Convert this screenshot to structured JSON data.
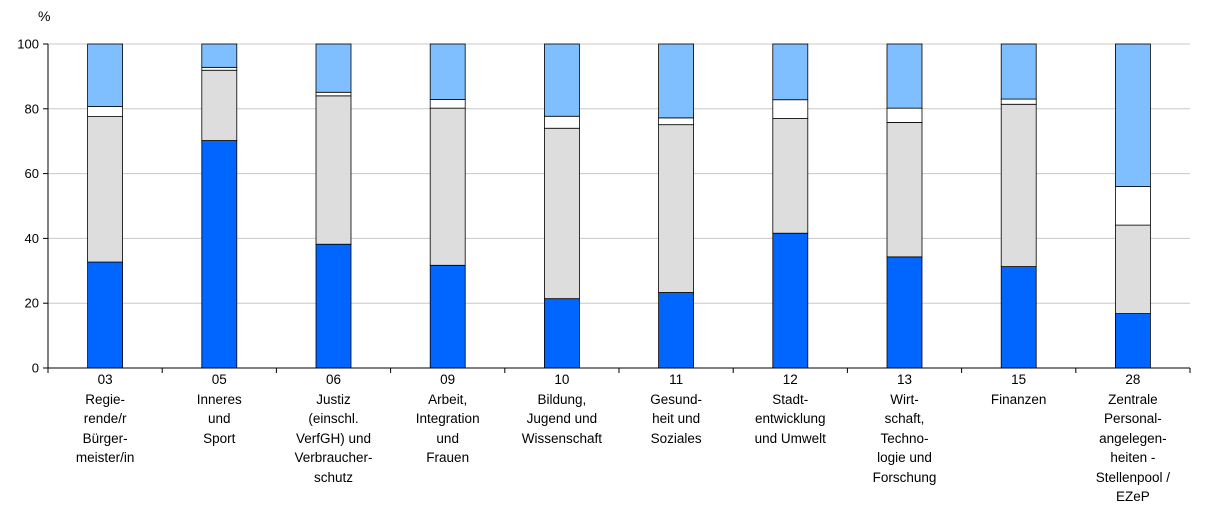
{
  "chart_data": {
    "type": "bar",
    "stacked": true,
    "y_unit": "%",
    "ylim": [
      0,
      100
    ],
    "yticks": [
      0,
      20,
      40,
      60,
      80,
      100
    ],
    "grid": true,
    "categories": [
      "03\nRegie-\nrende/r\nBürger-\nmeister/in",
      "05\nInneres\nund\nSport",
      "06\nJustiz\n(einschl.\nVerfGH) und\nVerbraucher-\nschutz",
      "09\nArbeit,\nIntegration\nund\nFrauen",
      "10\nBildung,\nJugend und\nWissenschaft",
      "11\nGesund-\nheit und\nSoziales",
      "12\nStadt-\nentwicklung\nund Umwelt",
      "13\nWirt-\nschaft,\nTechno-\nlogie und\nForschung",
      "15\nFinanzen",
      "28\nZentrale\nPersonal-\nangelegen-\nheiten -\nStellenpool /\nEZeP"
    ],
    "series": [
      {
        "color": "#0066ff",
        "values": [
          32.7,
          70.2,
          38.2,
          31.7,
          21.4,
          23.3,
          41.6,
          34.3,
          31.3,
          16.8
        ]
      },
      {
        "color": "#dddddd",
        "values": [
          44.9,
          21.7,
          45.8,
          48.5,
          52.6,
          51.8,
          35.4,
          41.5,
          50.1,
          27.3
        ]
      },
      {
        "color": "#ffffff",
        "values": [
          3.1,
          0.9,
          1.1,
          2.7,
          3.7,
          2.1,
          5.8,
          4.4,
          1.6,
          11.9
        ]
      },
      {
        "color": "#80bfff",
        "values": [
          19.3,
          7.2,
          14.9,
          17.1,
          22.3,
          22.8,
          17.2,
          19.8,
          17.0,
          44.0
        ]
      }
    ]
  }
}
